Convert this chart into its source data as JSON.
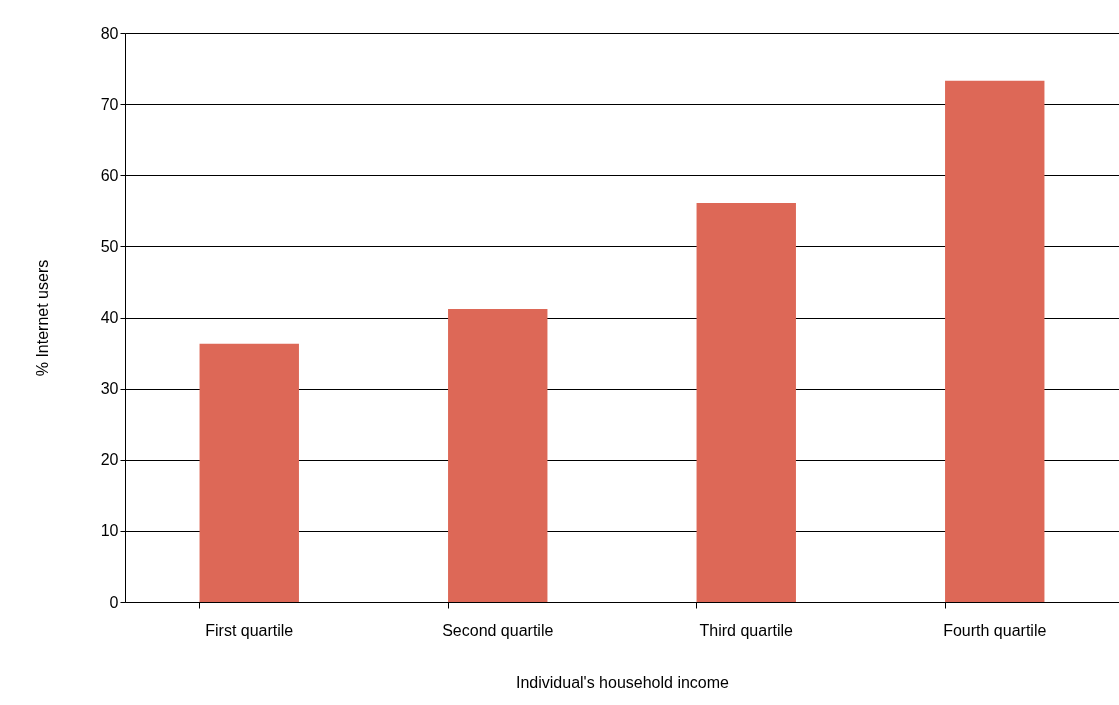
{
  "chart_data": {
    "type": "bar",
    "xlabel": "Individual's household income",
    "ylabel": "% Internet users",
    "categories": [
      "First quartile",
      "Second quartile",
      "Third quartile",
      "Fourth quartile"
    ],
    "values": [
      36.3,
      41.2,
      56.1,
      73.3
    ],
    "color": "#dd6857",
    "ylim": [
      0,
      80
    ],
    "yticks": [
      0,
      10,
      20,
      30,
      40,
      50,
      60,
      70,
      80
    ],
    "grid": "y"
  }
}
